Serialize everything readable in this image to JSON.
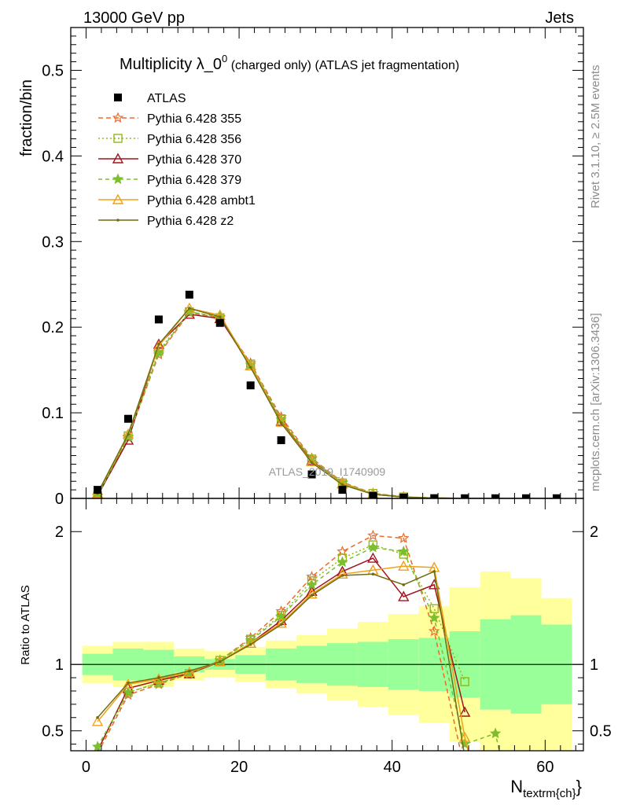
{
  "header": {
    "left": "13000 GeV pp",
    "right": "Jets"
  },
  "side_labels": {
    "right_top": "Rivet 3.1.10, ≥ 2.5M events",
    "right_bottom": "mcplots.cern.ch [arXiv:1306.3436]"
  },
  "watermark": "ATLAS_2019_I1740909",
  "chart_data": {
    "type": "line",
    "title": "Multiplicity λ_0⁰ (charged only) (ATLAS jet fragmentation)",
    "title_main": "Multiplicity λ_0",
    "title_sup": "0",
    "title_rest": " (charged only) (ATLAS jet fragmentation)",
    "xlabel": "N",
    "xlabel_sub": "textrm{ch}",
    "xlabel_close": "}",
    "ylabel": "fraction/bin",
    "ratio_ylabel": "Ratio to ATLAS",
    "xlim": [
      -2,
      65
    ],
    "ylim": [
      0,
      0.55
    ],
    "ratio_ylim": [
      0.35,
      2.25
    ],
    "x_ticks": [
      "0",
      "20",
      "40",
      "60"
    ],
    "y_ticks": [
      "0",
      "0.1",
      "0.2",
      "0.3",
      "0.4",
      "0.5"
    ],
    "ratio_ticks": [
      "0.5",
      "1",
      "2"
    ],
    "legend_position": "top-left",
    "x": [
      1.5,
      5.5,
      9.5,
      13.5,
      17.5,
      21.5,
      25.5,
      29.5,
      33.5,
      37.5,
      41.5,
      45.5,
      49.5,
      53.5,
      57.5,
      61.5
    ],
    "data": {
      "name": "ATLAS",
      "values": [
        0.01,
        0.093,
        0.209,
        0.238,
        0.205,
        0.132,
        0.068,
        0.028,
        0.01,
        0.003,
        0.001,
        0.0003,
        0.0002,
        0.0002,
        0.0002,
        0.0002
      ],
      "band_stat": [
        [
          0.92,
          1.08
        ],
        [
          0.88,
          1.12
        ],
        [
          0.89,
          1.11
        ],
        [
          0.94,
          1.06
        ],
        [
          0.96,
          1.04
        ],
        [
          0.93,
          1.07
        ],
        [
          0.88,
          1.12
        ],
        [
          0.86,
          1.14
        ],
        [
          0.84,
          1.16
        ],
        [
          0.83,
          1.17
        ],
        [
          0.81,
          1.19
        ],
        [
          0.8,
          1.2
        ],
        [
          0.75,
          1.25
        ],
        [
          0.66,
          1.34
        ],
        [
          0.63,
          1.37
        ],
        [
          0.7,
          1.3
        ]
      ],
      "band_total": [
        [
          0.86,
          1.14
        ],
        [
          0.83,
          1.17
        ],
        [
          0.83,
          1.17
        ],
        [
          0.88,
          1.12
        ],
        [
          0.9,
          1.1
        ],
        [
          0.87,
          1.13
        ],
        [
          0.82,
          1.18
        ],
        [
          0.78,
          1.22
        ],
        [
          0.73,
          1.27
        ],
        [
          0.68,
          1.32
        ],
        [
          0.62,
          1.38
        ],
        [
          0.56,
          1.44
        ],
        [
          0.42,
          1.58
        ],
        [
          0.3,
          1.7
        ],
        [
          0.3,
          1.65
        ],
        [
          0.3,
          1.5
        ]
      ]
    },
    "series": [
      {
        "name": "Pythia 6.428 355",
        "color": "#ee6a2a",
        "dash": "6,4",
        "marker": "star-open",
        "values": [
          0.003,
          0.071,
          0.168,
          0.217,
          0.211,
          0.158,
          0.095,
          0.047,
          0.019,
          0.006,
          0.0019,
          0.0004,
          0.0001,
          0.0,
          0.0,
          0.0
        ],
        "ratio": [
          0.33,
          0.77,
          0.85,
          0.93,
          1.03,
          1.2,
          1.4,
          1.66,
          1.85,
          1.97,
          1.95,
          1.25,
          0.2,
          null,
          null,
          null
        ]
      },
      {
        "name": "Pythia 6.428 356",
        "color": "#93b61a",
        "dash": "2,3",
        "marker": "square-open",
        "values": [
          0.003,
          0.073,
          0.172,
          0.218,
          0.211,
          0.157,
          0.093,
          0.046,
          0.018,
          0.0058,
          0.0017,
          0.0004,
          0.0002,
          0.0,
          0.0,
          0.0
        ],
        "ratio": [
          0.35,
          0.79,
          0.86,
          0.93,
          1.03,
          1.19,
          1.37,
          1.63,
          1.8,
          1.9,
          1.83,
          1.42,
          0.87,
          null,
          null,
          null
        ]
      },
      {
        "name": "Pythia 6.428 370",
        "color": "#a0141e",
        "dash": "",
        "marker": "triangle-open",
        "values": [
          0.003,
          0.068,
          0.18,
          0.215,
          0.21,
          0.155,
          0.09,
          0.044,
          0.017,
          0.005,
          0.0015,
          0.0005,
          0.0001,
          0.0,
          0.0,
          0.0
        ],
        "ratio": [
          0.35,
          0.82,
          0.88,
          0.93,
          1.02,
          1.16,
          1.33,
          1.55,
          1.7,
          1.8,
          1.51,
          1.6,
          0.64,
          null,
          null,
          null
        ]
      },
      {
        "name": "Pythia 6.428 379",
        "color": "#7cbf2e",
        "dash": "5,4",
        "marker": "star-filled",
        "values": [
          0.003,
          0.072,
          0.17,
          0.218,
          0.212,
          0.156,
          0.092,
          0.046,
          0.018,
          0.0058,
          0.0016,
          0.0004,
          0.0001,
          0.0,
          0.0,
          0.0
        ],
        "ratio": [
          0.38,
          0.79,
          0.86,
          0.93,
          1.03,
          1.18,
          1.36,
          1.6,
          1.77,
          1.88,
          1.85,
          1.35,
          0.4,
          0.48,
          null,
          null
        ]
      },
      {
        "name": "Pythia 6.428 ambt1",
        "color": "#f0a018",
        "dash": "",
        "marker": "triangle-open",
        "values": [
          0.006,
          0.075,
          0.178,
          0.222,
          0.214,
          0.155,
          0.089,
          0.043,
          0.017,
          0.005,
          0.0017,
          0.0005,
          0.0001,
          0.0,
          0.0,
          0.0
        ],
        "ratio": [
          0.57,
          0.85,
          0.89,
          0.94,
          1.02,
          1.16,
          1.31,
          1.53,
          1.68,
          1.71,
          1.74,
          1.73,
          0.45,
          null,
          null,
          null
        ]
      },
      {
        "name": "Pythia 6.428 z2",
        "color": "#6e6e14",
        "dash": "",
        "marker": "dot",
        "values": [
          0.006,
          0.075,
          0.18,
          0.222,
          0.212,
          0.153,
          0.088,
          0.042,
          0.016,
          0.0048,
          0.0016,
          0.0005,
          0.0001,
          0.0,
          0.0,
          0.0
        ],
        "ratio": [
          0.6,
          0.86,
          0.9,
          0.95,
          1.02,
          1.15,
          1.3,
          1.52,
          1.67,
          1.68,
          1.6,
          1.7,
          0.3,
          null,
          null,
          null
        ]
      }
    ]
  }
}
